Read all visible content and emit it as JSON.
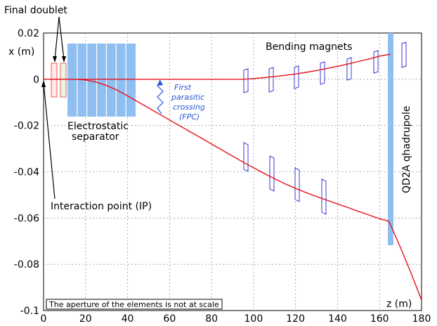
{
  "chart_data": {
    "type": "line",
    "title": "",
    "xlabel": "z (m)",
    "ylabel": "x (m)",
    "xlim": [
      0,
      180
    ],
    "ylim": [
      -0.1,
      0.02
    ],
    "xticks": [
      0,
      20,
      40,
      60,
      80,
      100,
      120,
      140,
      160,
      180
    ],
    "yticks": [
      0.02,
      0,
      -0.02,
      -0.04,
      -0.06,
      -0.08,
      -0.1
    ],
    "ytick_labels": [
      "0.02",
      "0",
      "-0.02",
      "-0.04",
      "-0.06",
      "-0.08",
      "-0.1"
    ],
    "grid": true,
    "series": [
      {
        "name": "",
        "color": "#e8101a",
        "x": [
          0,
          5,
          10,
          15,
          20,
          25,
          30,
          35,
          40,
          45,
          50,
          55,
          60,
          65,
          70,
          75,
          80,
          85,
          90,
          95,
          100,
          105,
          110,
          115,
          120,
          125,
          130,
          135,
          140,
          145,
          150,
          155,
          160,
          165
        ],
        "y": [
          0,
          0,
          0,
          0,
          0,
          0,
          0,
          0,
          0,
          0,
          0,
          0,
          0,
          0,
          0,
          0,
          0,
          0,
          0,
          0,
          0.0003,
          0.0007,
          0.0012,
          0.0017,
          0.0023,
          0.003,
          0.0038,
          0.0047,
          0.0056,
          0.0066,
          0.0077,
          0.0088,
          0.01,
          0.0108
        ]
      },
      {
        "name": "",
        "color": "#e8101a",
        "x": [
          0,
          5,
          10,
          15,
          20,
          25,
          30,
          35,
          40,
          45,
          50,
          55,
          60,
          65,
          70,
          75,
          80,
          85,
          90,
          95,
          100,
          105,
          110,
          115,
          120,
          125,
          130,
          135,
          140,
          145,
          150,
          155,
          160,
          164
        ],
        "y": [
          0,
          0,
          0,
          0,
          -0.0003,
          -0.0012,
          -0.0027,
          -0.0047,
          -0.0072,
          -0.0098,
          -0.0124,
          -0.015,
          -0.0176,
          -0.0202,
          -0.0228,
          -0.0254,
          -0.028,
          -0.0306,
          -0.0332,
          -0.0358,
          -0.0383,
          -0.0407,
          -0.043,
          -0.0452,
          -0.0472,
          -0.049,
          -0.0507,
          -0.0523,
          -0.0539,
          -0.0555,
          -0.0571,
          -0.0587,
          -0.0603,
          -0.0612
        ]
      },
      {
        "name": "",
        "color": "#e8101a",
        "x": [
          164,
          165,
          170,
          175,
          180
        ],
        "y": [
          -0.0612,
          -0.0625,
          -0.0728,
          -0.0838,
          -0.0955
        ]
      }
    ],
    "annotations": {
      "final_doublet": "Final doublet",
      "bending_magnets": "Bending magnets",
      "fpc_line1": "First",
      "fpc_line2": "parasitic",
      "fpc_line3": "crossing",
      "fpc_line4": "(FPC)",
      "separator_line1": "Electrostatic",
      "separator_line2": "separator",
      "interaction_point": "Interaction point (IP)",
      "quadrupole": "QD2A qhadrupole",
      "aperture_note": "The aperture of the elements is not at scale"
    },
    "colors": {
      "orbit": "#e8101a",
      "separator_fill": "#8fbff0",
      "magnet_outline": "#3a3acc",
      "fpc_text": "#2a55d8",
      "quadrupole_fill": "#8fbff0"
    }
  }
}
